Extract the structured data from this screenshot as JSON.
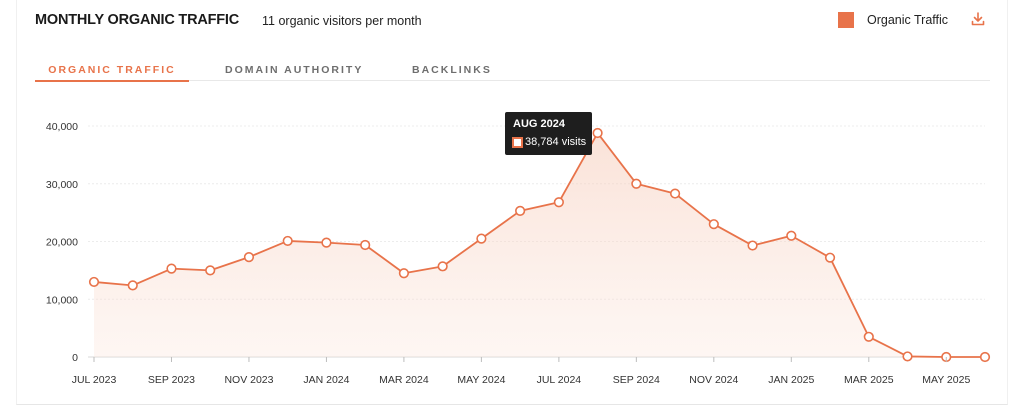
{
  "header": {
    "title": "MONTHLY ORGANIC TRAFFIC",
    "subtitle": "11 organic visitors per month",
    "legend_label": "Organic Traffic",
    "download_icon": "download-icon"
  },
  "tabs": [
    {
      "label": "ORGANIC TRAFFIC",
      "active": true
    },
    {
      "label": "DOMAIN AUTHORITY",
      "active": false
    },
    {
      "label": "BACKLINKS",
      "active": false
    }
  ],
  "tooltip": {
    "title": "AUG 2024",
    "value_text": "38,784 visits"
  },
  "colors": {
    "accent": "#e8734a",
    "fill_top": "#f9dcd0",
    "grid": "#ececec"
  },
  "chart_data": {
    "type": "area",
    "title": "MONTHLY ORGANIC TRAFFIC",
    "xlabel": "",
    "ylabel": "",
    "ylim": [
      0,
      40000
    ],
    "yticks": [
      0,
      10000,
      20000,
      30000,
      40000
    ],
    "ytick_labels": [
      "0",
      "10,000",
      "20,000",
      "30,000",
      "40,000"
    ],
    "x": [
      "JUL 2023",
      "AUG 2023",
      "SEP 2023",
      "OCT 2023",
      "NOV 2023",
      "DEC 2023",
      "JAN 2024",
      "FEB 2024",
      "MAR 2024",
      "APR 2024",
      "MAY 2024",
      "JUN 2024",
      "JUL 2024",
      "AUG 2024",
      "SEP 2024",
      "OCT 2024",
      "NOV 2024",
      "DEC 2024",
      "JAN 2025",
      "FEB 2025",
      "MAR 2025",
      "APR 2025",
      "MAY 2025",
      "JUN 2025"
    ],
    "xtick_labels": [
      "JUL 2023",
      "SEP 2023",
      "NOV 2023",
      "JAN 2024",
      "MAR 2024",
      "MAY 2024",
      "JUL 2024",
      "SEP 2024",
      "NOV 2024",
      "JAN 2025",
      "MAR 2025",
      "MAY 2025"
    ],
    "series": [
      {
        "name": "Organic Traffic",
        "values": [
          13000,
          12400,
          15300,
          15000,
          17300,
          20100,
          19800,
          19400,
          14500,
          15700,
          20500,
          25300,
          26800,
          38784,
          30000,
          28300,
          23000,
          19300,
          21000,
          17200,
          3500,
          100,
          0,
          0
        ]
      }
    ],
    "grid": true,
    "legend": "top-right"
  }
}
